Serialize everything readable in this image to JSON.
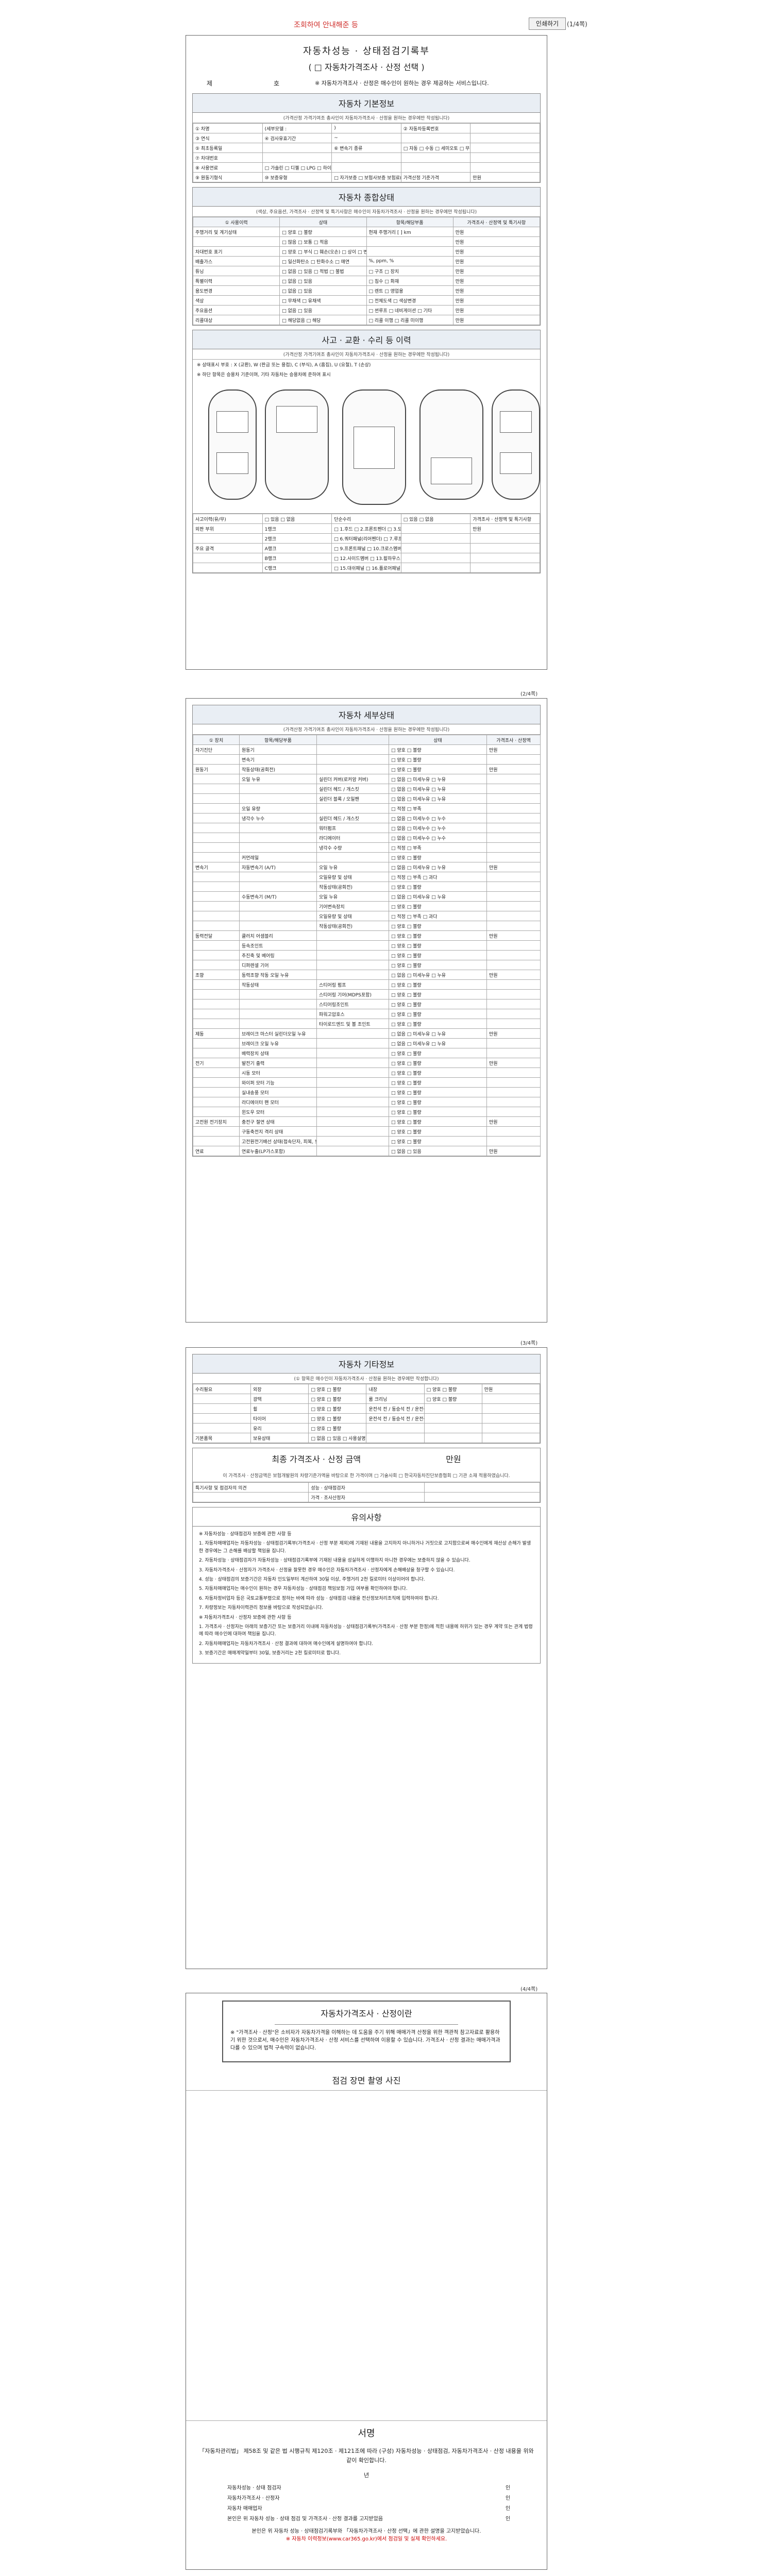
{
  "topbar": {
    "notice": "조회하여 안내해준 등",
    "close_label": "인쇄하기",
    "page_label": "(1/4쪽)"
  },
  "page1": {
    "title": "자동차성능 · 상태점검기록부",
    "subtitle": "( □ 자동차가격조사 · 산정 선택 )",
    "no_label": "제",
    "ho_label": "호",
    "no_note": "※ 자동차가격조사 · 산정은 매수인이 원하는 경우 제공하는 서비스입니다.",
    "basic": {
      "title": "자동차 기본정보",
      "sub": "(가격산정 가격기여조 총사인이 자동차가격조사 · 산정을 원하는 경우에만 작성됩니다)",
      "rows": [
        [
          "① 차명",
          "(세부모델 :",
          ")",
          "② 자동차등록번호",
          ""
        ],
        [
          "③ 연식",
          "④ 검사유효기간",
          "~",
          "",
          ""
        ],
        [
          "⑤ 최초등록일",
          "",
          "⑥ 변속기 종류",
          "□ 자동  □ 수동  □ 세미오토  □ 무단변속기  □ 기타(  )",
          ""
        ],
        [
          "⑦ 차대번호",
          "",
          "",
          "",
          ""
        ],
        [
          "⑧ 사용연료",
          "□ 가솔린  □ 디젤  □ LPG  □ 하이브리드  □ 전기  □ 수소전기  □ 기타",
          "",
          "",
          ""
        ],
        [
          "⑨ 원동기형식",
          "⑩ 보증유형",
          "□ 자가보증  □ 보험사보증 보험료(  )",
          "가격산정 기준가격",
          "만원"
        ]
      ]
    },
    "summary": {
      "title": "자동차 종합상태",
      "sub": "(색상, 주요옵션, 가격조사 · 산정액 및 특기사항은 매수인이 자동차가격조사 · 산정을 원하는 경우에만 작성됩니다)",
      "header": [
        "① 사용이력",
        "상태",
        "항목/해당부품",
        "가격조사 · 산정액 및 특기사항"
      ],
      "rows": [
        [
          "주행거리 및 계기상태",
          "□ 양호  □ 불량",
          "현재 주행거리 [  ] km",
          "만원"
        ],
        [
          "",
          "□ 많음  □ 보통  □ 적음",
          "",
          "만원"
        ],
        [
          "차대번호 표기",
          "□ 양호  □ 부식  □ 훼손(오손)  □ 상이  □ 변조(변타)  □ 도말",
          "",
          "만원"
        ],
        [
          "배출가스",
          "□ 일산화탄소  □ 탄화수소  □ 매연",
          "%,  ppm,  %",
          "만원"
        ],
        [
          "튜닝",
          "□ 없음  □ 있음  □ 적법  □ 불법",
          "□ 구조  □ 장치",
          "만원"
        ],
        [
          "특별이력",
          "□ 없음  □ 있음",
          "□ 침수  □ 화재",
          "만원"
        ],
        [
          "용도변경",
          "□ 없음  □ 있음",
          "□ 렌트  □ 영업용",
          "만원"
        ],
        [
          "색상",
          "□ 무채색  □ 유채색",
          "□ 전체도색  □ 색상변경",
          "만원"
        ],
        [
          "주요옵션",
          "□ 없음  □ 있음",
          "□ 썬루프  □ 네비게이션  □ 기타",
          "만원"
        ],
        [
          "리콜대상",
          "□ 해당없음  □ 해당",
          "□ 리콜 이행  □ 리콜 미이행",
          "만원"
        ]
      ]
    },
    "accident": {
      "title": "사고 · 교환 · 수리 등 이력",
      "sub": "(가격산정 가격기여조 총사인이 자동차가격조사 · 산정을 원하는 경우에만 작성됩니다)",
      "notes": [
        "※ 상태표시 부호 : X (교환), W (판금 또는 용접), C (부식), A (흠집), U (요철), T (손상)",
        "※ 하단 항목은 승용차 기준이며, 기타 자동차는 승용차에 준하여 표시"
      ],
      "rows": [
        [
          "사고이력(유/무)",
          "□ 있음  □ 없음",
          "단순수리",
          "□ 있음  □ 없음",
          "가격조사 · 산정액 및 특기사항"
        ],
        [
          "외판 부위",
          "1랭크",
          "□ 1.후드  □ 2.프론트펜더  □ 3.도어  □ 4.트렁크리드  □ 5.라디에이터 서포트(볼트체결부품)",
          "",
          "만원"
        ],
        [
          "",
          "2랭크",
          "□ 6.쿼터패널(리어펜더)  □ 7.루프패널  □ 8.사이드실패널",
          "",
          ""
        ],
        [
          "주요 골격",
          "A랭크",
          "□ 9.프론트패널  □ 10.크로스멤버  □ 11.인사이드패널  □ 17.트렁크플로어  □ 18.리어패널",
          "",
          ""
        ],
        [
          "",
          "B랭크",
          "□ 12.사이드멤버  □ 13.휠하우스  □ 14.필러패널(A, B, C)  □ 16.패키지트레이",
          "",
          ""
        ],
        [
          "",
          "C랭크",
          "□ 15.대쉬패널  □ 16.플로어패널",
          "",
          ""
        ]
      ]
    }
  },
  "page2": {
    "page_label": "(2/4쪽)",
    "title": "자동차 세부상태",
    "sub": "(가격산정 가격기여조 총사인이 자동차가격조사 · 산정을 원하는 경우에만 작성됩니다)",
    "header": [
      "① 장치",
      "항목/해당부품",
      "",
      "상태",
      "가격조사 · 산정액"
    ],
    "rows": [
      [
        "자기진단",
        "원동기",
        "",
        "□ 양호  □ 불량",
        "만원"
      ],
      [
        "",
        "변속기",
        "",
        "□ 양호  □ 불량",
        ""
      ],
      [
        "원동기",
        "작동상태(공회전)",
        "",
        "□ 양호  □ 불량",
        "만원"
      ],
      [
        "",
        "오일 누유",
        "실린더 커버(로커암 커버)",
        "□ 없음  □ 미세누유  □ 누유",
        ""
      ],
      [
        "",
        "",
        "실린더 헤드 / 개스킷",
        "□ 없음  □ 미세누유  □ 누유",
        ""
      ],
      [
        "",
        "",
        "실린더 블록 / 오일팬",
        "□ 없음  □ 미세누유  □ 누유",
        ""
      ],
      [
        "",
        "오일 유량",
        "",
        "□ 적정  □ 부족",
        ""
      ],
      [
        "",
        "냉각수 누수",
        "실린더 헤드 / 개스킷",
        "□ 없음  □ 미세누수  □ 누수",
        ""
      ],
      [
        "",
        "",
        "워터펌프",
        "□ 없음  □ 미세누수  □ 누수",
        ""
      ],
      [
        "",
        "",
        "라디에이터",
        "□ 없음  □ 미세누수  □ 누수",
        ""
      ],
      [
        "",
        "",
        "냉각수 수량",
        "□ 적정  □ 부족",
        ""
      ],
      [
        "",
        "커먼레일",
        "",
        "□ 양호  □ 불량",
        ""
      ],
      [
        "변속기",
        "자동변속기 (A/T)",
        "오일 누유",
        "□ 없음  □ 미세누유  □ 누유",
        "만원"
      ],
      [
        "",
        "",
        "오일유량 및 상태",
        "□ 적정  □ 부족  □ 과다",
        ""
      ],
      [
        "",
        "",
        "작동상태(공회전)",
        "□ 양호  □ 불량",
        ""
      ],
      [
        "",
        "수동변속기 (M/T)",
        "오일 누유",
        "□ 없음  □ 미세누유  □ 누유",
        ""
      ],
      [
        "",
        "",
        "기어변속장치",
        "□ 양호  □ 불량",
        ""
      ],
      [
        "",
        "",
        "오일유량 및 상태",
        "□ 적정  □ 부족  □ 과다",
        ""
      ],
      [
        "",
        "",
        "작동상태(공회전)",
        "□ 양호  □ 불량",
        ""
      ],
      [
        "동력전달",
        "클러치 어셈블리",
        "",
        "□ 양호  □ 불량",
        "만원"
      ],
      [
        "",
        "등속조인트",
        "",
        "□ 양호  □ 불량",
        ""
      ],
      [
        "",
        "추진축 및 베어링",
        "",
        "□ 양호  □ 불량",
        ""
      ],
      [
        "",
        "디퍼렌셜 기어",
        "",
        "□ 양호  □ 불량",
        ""
      ],
      [
        "조향",
        "동력조향 작동 오일 누유",
        "",
        "□ 없음  □ 미세누유  □ 누유",
        "만원"
      ],
      [
        "",
        "작동상태",
        "스티어링 펌프",
        "□ 양호  □ 불량",
        ""
      ],
      [
        "",
        "",
        "스티어링 기어(MDPS포함)",
        "□ 양호  □ 불량",
        ""
      ],
      [
        "",
        "",
        "스티어링조인트",
        "□ 양호  □ 불량",
        ""
      ],
      [
        "",
        "",
        "파워고압호스",
        "□ 양호  □ 불량",
        ""
      ],
      [
        "",
        "",
        "타이로드엔드 및 볼 조인트",
        "□ 양호  □ 불량",
        ""
      ],
      [
        "제동",
        "브레이크 마스터 실린더오일 누유",
        "",
        "□ 없음  □ 미세누유  □ 누유",
        "만원"
      ],
      [
        "",
        "브레이크 오일 누유",
        "",
        "□ 없음  □ 미세누유  □ 누유",
        ""
      ],
      [
        "",
        "배력장치 상태",
        "",
        "□ 양호  □ 불량",
        ""
      ],
      [
        "전기",
        "발전기 출력",
        "",
        "□ 양호  □ 불량",
        "만원"
      ],
      [
        "",
        "시동 모터",
        "",
        "□ 양호  □ 불량",
        ""
      ],
      [
        "",
        "와이퍼 모터 기능",
        "",
        "□ 양호  □ 불량",
        ""
      ],
      [
        "",
        "실내송풍 모터",
        "",
        "□ 양호  □ 불량",
        ""
      ],
      [
        "",
        "라디에이터 팬 모터",
        "",
        "□ 양호  □ 불량",
        ""
      ],
      [
        "",
        "윈도우 모터",
        "",
        "□ 양호  □ 불량",
        ""
      ],
      [
        "고전원 전기장치",
        "충전구 절연 상태",
        "",
        "□ 양호  □ 불량",
        "만원"
      ],
      [
        "",
        "구동축전지 격리 상태",
        "",
        "□ 양호  □ 불량",
        ""
      ],
      [
        "",
        "고전원전기배선 상태(접속단자, 피복, 보호기구)",
        "",
        "□ 양호  □ 불량",
        ""
      ],
      [
        "연료",
        "연료누출(LP가스포함)",
        "",
        "□ 없음  □ 있음",
        "만원"
      ]
    ]
  },
  "page3": {
    "page_label": "(3/4쪽)",
    "title": "자동차 기타정보",
    "sub": "(① 항목은 매수인이 자동차가격조사 · 산정을 원하는 경우에만 작성합니다)",
    "rows": [
      [
        "수리필요",
        "외장",
        "□ 양호  □ 불량",
        "내장",
        "□ 양호  □ 불량",
        "만원"
      ],
      [
        "",
        "광택",
        "□ 양호  □ 불량",
        "룸 크리닝",
        "□ 양호  □ 불량",
        ""
      ],
      [
        "",
        "휠",
        "□ 양호  □ 불량",
        "운전석 전 / 동승석 전 / 운전석 후 / 동승석 후",
        "",
        ""
      ],
      [
        "",
        "타이어",
        "□ 양호  □ 불량",
        "운전석 전 / 동승석 전 / 운전석 후 / 동승석 후",
        "",
        ""
      ],
      [
        "",
        "유리",
        "□ 양호  □ 불량",
        "",
        "",
        ""
      ],
      [
        "기본품목",
        "보유상태",
        "□ 없음  □ 있음  □ 사용설명서  □ 안전삼각대  □ 잭  □ 스패너",
        "",
        "",
        ""
      ]
    ],
    "price_title": "최종 가격조사 · 산정 금액",
    "price_unit": "만원",
    "price_note": "이 가격조사 · 산정금액은 보험개발원의 차량기준가액을 바탕으로 한 가격이며 □ 기술사회 □ 한국자동차진단보증협회 □ 기관 소재 적용하였습니다.",
    "price_rows": [
      [
        "특기사항 및 점검자의 의견",
        "성능 · 상태점검자",
        ""
      ],
      [
        "",
        "가격 · 조사산정자",
        ""
      ]
    ],
    "notice_title": "유의사항",
    "notice_paragraphs": [
      "※ 자동차성능 · 상태점검자 보증에 관한 사항 등",
      "1. 자동차매매업자는 자동차성능 · 상태점검기록부(가격조사 · 산정 부분 제외)에 기재된 내용을 고지하지 아니하거나 거짓으로 고지함으로써 매수인에게 재산상 손해가 발생한 경우에는 그 손해를 배상할 책임을 집니다.",
      "2. 자동차성능 · 상태점검자가 자동차성능 · 상태점검기록부에 기재된 내용을 성실하게 이행하지 아니한 경우에는 보증하지 않을 수 있습니다.",
      "3. 자동차가격조사 · 산정자가 가격조사 · 산정을 잘못한 경우 매수인은 자동차가격조사 · 산정자에게 손해배상을 청구할 수 있습니다.",
      "4. 성능 · 상태점검의 보증기간은 자동차 인도일부터 계산하여 30일 이상, 주행거리 2천 킬로미터 이상이어야 합니다.",
      "5. 자동차매매업자는 매수인이 원하는 경우 자동차성능 · 상태점검 책임보험 가입 여부를 확인하여야 합니다.",
      "6. 자동차정비업자 등은 국토교통부령으로 정하는 바에 따라 성능 · 상태점검 내용을 전산정보처리조직에 입력하여야 합니다.",
      "7. 차량정보는 자동차이력관리 정보를 바탕으로 작성되었습니다.",
      "※ 자동차가격조사 · 산정자 보증에 관한 사항 등",
      "1. 가격조사 · 산정자는 아래의 보증기간 또는 보증거리 이내에 자동차성능 · 상태점검기록부(가격조사 · 산정 부분 한정)에 적힌 내용에 허위가 있는 경우 계약 또는 관계 법령에 따라 매수인에 대하여 책임을 집니다.",
      "2. 자동차매매업자는 자동차가격조사 · 산정 결과에 대하여 매수인에게 설명하여야 합니다.",
      "3. 보증기간은 매매계약일부터 30일, 보증거리는 2천 킬로미터로 합니다."
    ]
  },
  "page4": {
    "page_label": "(4/4쪽)",
    "box_title": "자동차가격조사 · 산정이란",
    "box_text": "※ \"가격조사 · 산정\"은 소비자가 자동차가격을 이해하는 데 도움을 주기 위해 매매가격 산정을 위한 객관적 참고자료로 활용하기 위한 것으로서, 매수인은 자동차가격조사 · 산정 서비스를 선택하여 이용할 수 있습니다. 가격조사 · 산정 결과는 매매가격과 다를 수 있으며 법적 구속력이 없습니다.",
    "photo_title": "점검 장면 촬영 사진",
    "sign_title": "서명",
    "sign_text": "「자동차관리법」 제58조 및 같은 법 시행규칙 제120조 · 제121조에 따라 (구성) 자동차성능 · 상태점검, 자동차가격조사 · 산정 내용을 위와 같이 확인합니다.",
    "year_label": "년",
    "sign_rows": [
      [
        "자동차성능 · 상태 점검자",
        "인"
      ],
      [
        "자동차가격조사 · 산정자",
        "인"
      ],
      [
        "자동차 매매업자",
        "인"
      ],
      [
        "본인은 위 자동차 성능 · 상태 점검 및 가격조사 · 산정 결과를 고지받았음",
        "인"
      ]
    ],
    "foot_text": "본인은 위 자동차 성능 · 상태점검기록부와 「자동차가격조사 · 산정 선택」에 관한 설명을 고지받았습니다.",
    "foot_link": "※ 자동차 이력정보(www.car365.go.kr)에서 점검일 및 실제 확인하세요."
  }
}
